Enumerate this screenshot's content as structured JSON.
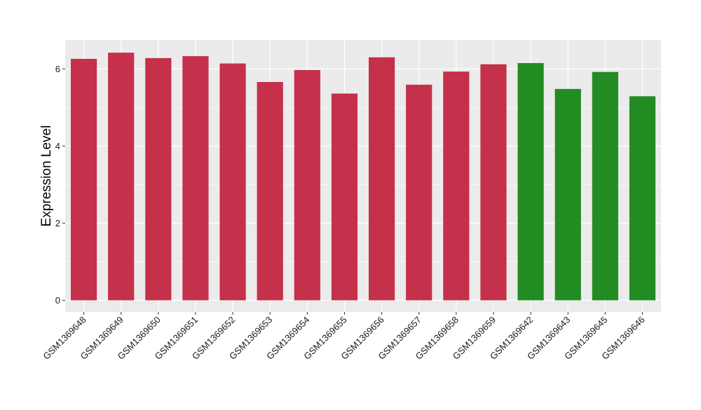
{
  "chart_data": {
    "type": "bar",
    "title": "",
    "xlabel": "",
    "ylabel": "Expression Level",
    "ylim": [
      -0.3,
      6.75
    ],
    "yticks": [
      0,
      2,
      4,
      6
    ],
    "grid": true,
    "categories": [
      "GSM1369648",
      "GSM1369649",
      "GSM1369650",
      "GSM1369651",
      "GSM1369652",
      "GSM1369653",
      "GSM1369654",
      "GSM1369655",
      "GSM1369656",
      "GSM1369657",
      "GSM1369658",
      "GSM1369659",
      "GSM1369642",
      "GSM1369643",
      "GSM1369645",
      "GSM1369646"
    ],
    "values": [
      6.26,
      6.42,
      6.28,
      6.33,
      6.14,
      5.66,
      5.97,
      5.36,
      6.3,
      5.59,
      5.93,
      6.12,
      6.15,
      5.48,
      5.92,
      5.29
    ],
    "groups": [
      "a",
      "a",
      "a",
      "a",
      "a",
      "a",
      "a",
      "a",
      "a",
      "a",
      "a",
      "a",
      "b",
      "b",
      "b",
      "b"
    ],
    "group_colors": {
      "a": "#C5304A",
      "b": "#228B22"
    },
    "panel_background": "#EBEBEB",
    "grid_color": "#FFFFFF"
  }
}
